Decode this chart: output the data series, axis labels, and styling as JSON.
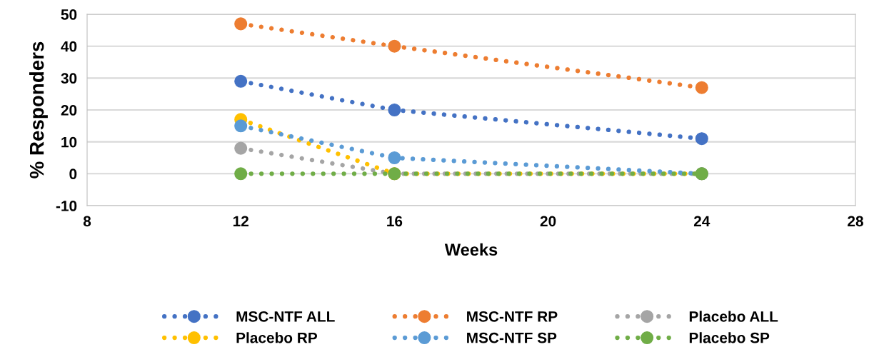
{
  "chart_data": {
    "type": "line",
    "xlabel": "Weeks",
    "ylabel": "% Responders",
    "x": [
      12,
      16,
      24
    ],
    "xlim": [
      8,
      28
    ],
    "xticks": [
      8,
      12,
      16,
      20,
      24,
      28
    ],
    "ylim": [
      -10,
      50
    ],
    "yticks": [
      -10,
      0,
      10,
      20,
      30,
      40,
      50
    ],
    "grid": "y",
    "legend": "bottom",
    "marker": "circle",
    "line_style": "dotted",
    "series": [
      {
        "name": "MSC-NTF ALL",
        "color": "#4472c4",
        "values": [
          29,
          20,
          11
        ]
      },
      {
        "name": "MSC-NTF RP",
        "color": "#ed7d31",
        "values": [
          47,
          40,
          27
        ]
      },
      {
        "name": "Placebo ALL",
        "color": "#a5a5a5",
        "values": [
          8,
          0,
          0
        ]
      },
      {
        "name": "Placebo RP",
        "color": "#ffc000",
        "values": [
          17,
          0,
          0
        ]
      },
      {
        "name": "MSC-NTF SP",
        "color": "#5b9bd5",
        "values": [
          15,
          5,
          0
        ]
      },
      {
        "name": "Placebo SP",
        "color": "#70ad47",
        "values": [
          0,
          0,
          0
        ]
      }
    ]
  }
}
